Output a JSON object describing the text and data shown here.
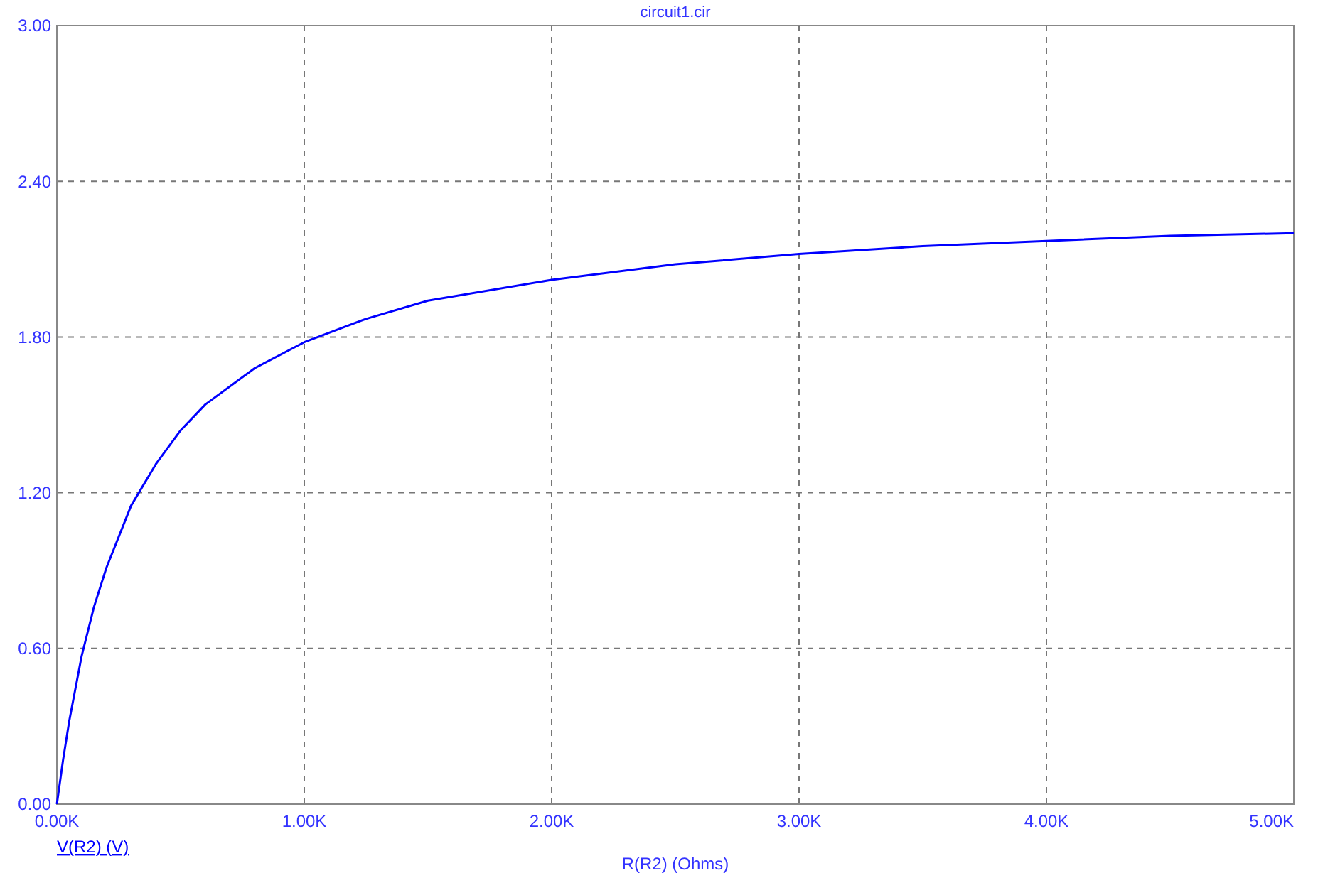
{
  "chart_data": {
    "type": "line",
    "title": "circuit1.cir",
    "xlabel": "R(R2) (Ohms)",
    "x": [
      0,
      25,
      50,
      100,
      150,
      200,
      300,
      400,
      500,
      600,
      800,
      1000,
      1250,
      1500,
      2000,
      2500,
      3000,
      3500,
      4000,
      4500,
      5000
    ],
    "series": [
      {
        "name": "V(R2) (V)",
        "color": "#0000ff",
        "values": [
          0,
          0.17,
          0.32,
          0.57,
          0.76,
          0.91,
          1.15,
          1.31,
          1.44,
          1.54,
          1.68,
          1.78,
          1.87,
          1.94,
          2.02,
          2.08,
          2.12,
          2.15,
          2.17,
          2.19,
          2.2
        ]
      }
    ],
    "xlim": [
      0,
      5000
    ],
    "xticks": [
      {
        "value": 0,
        "label": "0.00K"
      },
      {
        "value": 1000,
        "label": "1.00K"
      },
      {
        "value": 2000,
        "label": "2.00K"
      },
      {
        "value": 3000,
        "label": "3.00K"
      },
      {
        "value": 4000,
        "label": "4.00K"
      },
      {
        "value": 5000,
        "label": "5.00K"
      }
    ],
    "ylim": [
      0,
      3
    ],
    "yticks": [
      {
        "value": 0,
        "label": "0.00"
      },
      {
        "value": 0.6,
        "label": "0.60"
      },
      {
        "value": 1.2,
        "label": "1.20"
      },
      {
        "value": 1.8,
        "label": "1.80"
      },
      {
        "value": 2.4,
        "label": "2.40"
      },
      {
        "value": 3,
        "label": "3.00"
      }
    ],
    "grid": true,
    "legend": "bottom left",
    "marker": "none",
    "line_style": "solid"
  }
}
